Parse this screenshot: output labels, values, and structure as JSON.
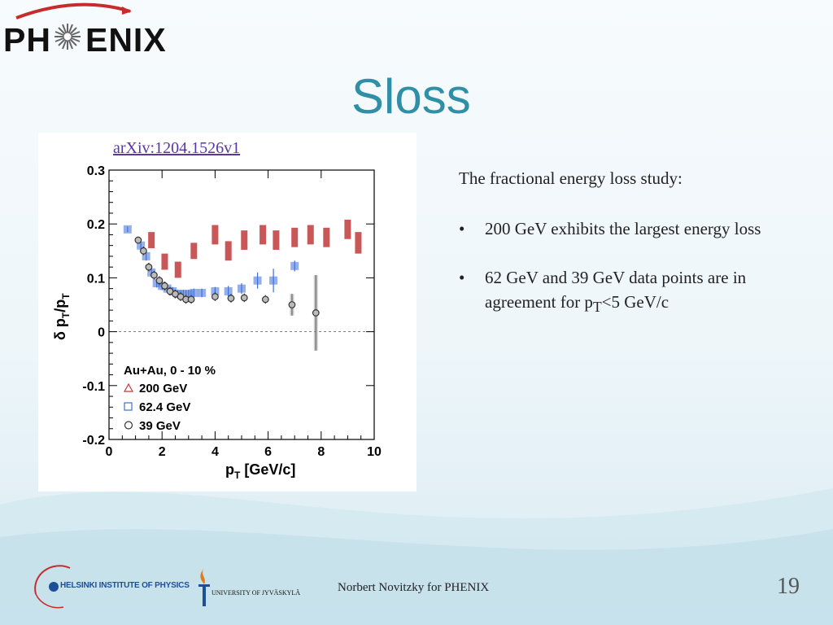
{
  "slide": {
    "title": "Sloss",
    "logo": "PH✦ENIX",
    "logo_parts": {
      "left": "PH",
      "right": "ENIX"
    },
    "arxiv_link": "arXiv:1204.1526v1",
    "intro": "The fractional energy loss study:",
    "bullets": [
      "200 GeV exhibits the largest energy loss",
      "62 GeV and 39 GeV data points are in agreement for p"
    ],
    "bullet2_sub": "T",
    "bullet2_tail": "<5 GeV/c",
    "bullet_marker": "•",
    "footer": "Norbert Novitzky for PHENIX",
    "page_number": "19",
    "institution_1": "HELSINKI INSTITUTE OF PHYSICS",
    "institution_2": "UNIVERSITY OF JYVÄSKYLÄ",
    "colors": {
      "title": "#2f8fa6",
      "s200": "#c0393b",
      "s62": "#3e6fd8",
      "s39": "#666666"
    }
  },
  "chart_data": {
    "type": "scatter",
    "xlabel": "p",
    "xlabel_sub": "T",
    "xlabel_unit": "[GeV/c]",
    "ylabel": "δ p",
    "ylabel_parts": [
      "δ p",
      "T",
      "/p",
      "T"
    ],
    "xlim": [
      0,
      10
    ],
    "ylim": [
      -0.2,
      0.3
    ],
    "xticks": [
      0,
      2,
      4,
      6,
      8,
      10
    ],
    "yticks": [
      -0.2,
      -0.1,
      0,
      0.1,
      0.2,
      0.3
    ],
    "ytick_labels": [
      "-0.2",
      "-0.1",
      "0",
      "0.1",
      "0.2",
      "0.3"
    ],
    "legend_title": "Au+Au, 0 - 10 %",
    "legend_position": "bottom-left",
    "zero_line": "dashed",
    "series": [
      {
        "name": "200 GeV",
        "marker": "triangle",
        "color": "#c0393b",
        "x": [
          1.6,
          2.1,
          2.6,
          3.2,
          4.0,
          4.5,
          5.1,
          5.8,
          6.3,
          7.0,
          7.6,
          8.2,
          9.0,
          9.4
        ],
        "y": [
          0.17,
          0.13,
          0.115,
          0.15,
          0.18,
          0.15,
          0.17,
          0.18,
          0.17,
          0.175,
          0.18,
          0.175,
          0.19,
          0.165
        ],
        "err": [
          0.015,
          0.015,
          0.015,
          0.015,
          0.018,
          0.018,
          0.018,
          0.018,
          0.018,
          0.018,
          0.018,
          0.018,
          0.018,
          0.02
        ]
      },
      {
        "name": "62.4 GeV",
        "marker": "square",
        "color": "#3e6fd8",
        "x": [
          0.7,
          1.2,
          1.4,
          1.6,
          1.8,
          2.0,
          2.2,
          2.4,
          2.6,
          2.8,
          3.0,
          3.2,
          3.5,
          4.0,
          4.5,
          5.0,
          5.6,
          6.2,
          7.0
        ],
        "y": [
          0.19,
          0.16,
          0.14,
          0.11,
          0.09,
          0.085,
          0.08,
          0.075,
          0.07,
          0.07,
          0.07,
          0.072,
          0.072,
          0.075,
          0.075,
          0.08,
          0.095,
          0.095,
          0.122
        ],
        "err": [
          0.005,
          0.008,
          0.008,
          0.008,
          0.008,
          0.008,
          0.008,
          0.008,
          0.008,
          0.008,
          0.008,
          0.008,
          0.008,
          0.008,
          0.01,
          0.01,
          0.015,
          0.022,
          0.01
        ]
      },
      {
        "name": "39 GeV",
        "marker": "circle",
        "color": "#666666",
        "x": [
          1.1,
          1.3,
          1.5,
          1.7,
          1.9,
          2.1,
          2.3,
          2.5,
          2.7,
          2.9,
          3.1,
          4.0,
          4.6,
          5.1,
          5.9,
          6.9,
          7.8
        ],
        "y": [
          0.17,
          0.15,
          0.12,
          0.105,
          0.095,
          0.085,
          0.075,
          0.07,
          0.065,
          0.06,
          0.06,
          0.065,
          0.062,
          0.063,
          0.06,
          0.05,
          0.035
        ],
        "err": [
          0.006,
          0.008,
          0.008,
          0.008,
          0.008,
          0.008,
          0.008,
          0.008,
          0.008,
          0.008,
          0.008,
          0.008,
          0.008,
          0.008,
          0.008,
          0.02,
          0.07
        ]
      }
    ]
  }
}
